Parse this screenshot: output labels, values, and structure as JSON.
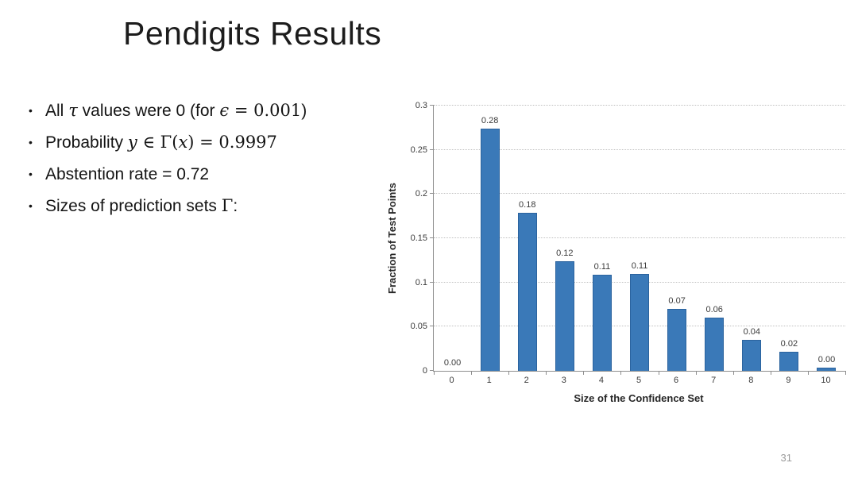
{
  "slide": {
    "title": "Pendigits Results",
    "page_number": "31"
  },
  "bullets": [
    {
      "runs": [
        {
          "t": "All ",
          "s": "plain"
        },
        {
          "t": "τ",
          "s": "mi"
        },
        {
          "t": " values were 0 (for ",
          "s": "plain"
        },
        {
          "t": "ϵ",
          "s": "mi"
        },
        {
          "t": " = 0.001",
          "s": "mu"
        },
        {
          "t": ")",
          "s": "plain"
        }
      ]
    },
    {
      "runs": [
        {
          "t": "Probability ",
          "s": "plain"
        },
        {
          "t": "y",
          "s": "mi"
        },
        {
          "t": " ∈ Γ(",
          "s": "mu"
        },
        {
          "t": "x",
          "s": "mi"
        },
        {
          "t": ") = 0.9997",
          "s": "mu"
        }
      ]
    },
    {
      "runs": [
        {
          "t": "Abstention rate = 0.72",
          "s": "plain"
        }
      ]
    },
    {
      "runs": [
        {
          "t": "Sizes of prediction sets ",
          "s": "plain"
        },
        {
          "t": "Γ",
          "s": "mu"
        },
        {
          "t": ":",
          "s": "plain"
        }
      ]
    }
  ],
  "chart_data": {
    "type": "bar",
    "title": "",
    "xlabel": "Size of the Confidence Set",
    "ylabel": "Fraction of Test Points",
    "categories": [
      "0",
      "1",
      "2",
      "3",
      "4",
      "5",
      "6",
      "7",
      "8",
      "9",
      "10"
    ],
    "values": [
      0.0,
      0.28,
      0.18,
      0.12,
      0.11,
      0.11,
      0.07,
      0.06,
      0.04,
      0.02,
      0.0
    ],
    "bar_labels": [
      "0.00",
      "0.28",
      "0.18",
      "0.12",
      "0.11",
      "0.11",
      "0.07",
      "0.06",
      "0.04",
      "0.02",
      "0.00"
    ],
    "rendered_heights": [
      0,
      0.274,
      0.179,
      0.124,
      0.109,
      0.11,
      0.07,
      0.06,
      0.035,
      0.022,
      0.004
    ],
    "ylim": [
      0,
      0.3
    ],
    "yticks": [
      "0",
      "0.05",
      "0.1",
      "0.15",
      "0.2",
      "0.25",
      "0.3"
    ],
    "ytick_values": [
      0,
      0.05,
      0.1,
      0.15,
      0.2,
      0.25,
      0.3
    ],
    "grid": "horizontal dotted",
    "legend": "none",
    "bar_color": "#3a79b8",
    "bar_border_color": "#2b639e",
    "axis_color": "#8e8e8e",
    "gridline_color": "#bfbfbf"
  }
}
